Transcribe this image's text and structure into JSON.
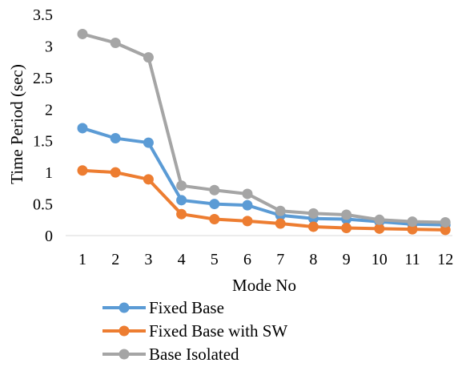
{
  "chart_data": {
    "type": "line",
    "title": "",
    "xlabel": "Mode No",
    "ylabel": "Time Period (sec)",
    "x": [
      1,
      2,
      3,
      4,
      5,
      6,
      7,
      8,
      9,
      10,
      11,
      12
    ],
    "ylim": [
      0,
      3.5
    ],
    "yticks": [
      "0",
      "0.5",
      "1",
      "1.5",
      "2",
      "2.5",
      "3",
      "3.5"
    ],
    "grid": false,
    "legend_position": "bottom",
    "series": [
      {
        "name": "Fixed Base",
        "color": "#5B9BD5",
        "values": [
          1.7,
          1.54,
          1.47,
          0.56,
          0.5,
          0.48,
          0.32,
          0.27,
          0.26,
          0.22,
          0.18,
          0.17
        ]
      },
      {
        "name": "Fixed Base with SW",
        "color": "#ED7D31",
        "values": [
          1.03,
          1.0,
          0.89,
          0.34,
          0.26,
          0.23,
          0.19,
          0.14,
          0.12,
          0.11,
          0.1,
          0.09
        ]
      },
      {
        "name": "Base Isolated",
        "color": "#A5A5A5",
        "values": [
          3.19,
          3.05,
          2.82,
          0.79,
          0.72,
          0.66,
          0.39,
          0.35,
          0.33,
          0.25,
          0.22,
          0.21
        ]
      }
    ]
  }
}
